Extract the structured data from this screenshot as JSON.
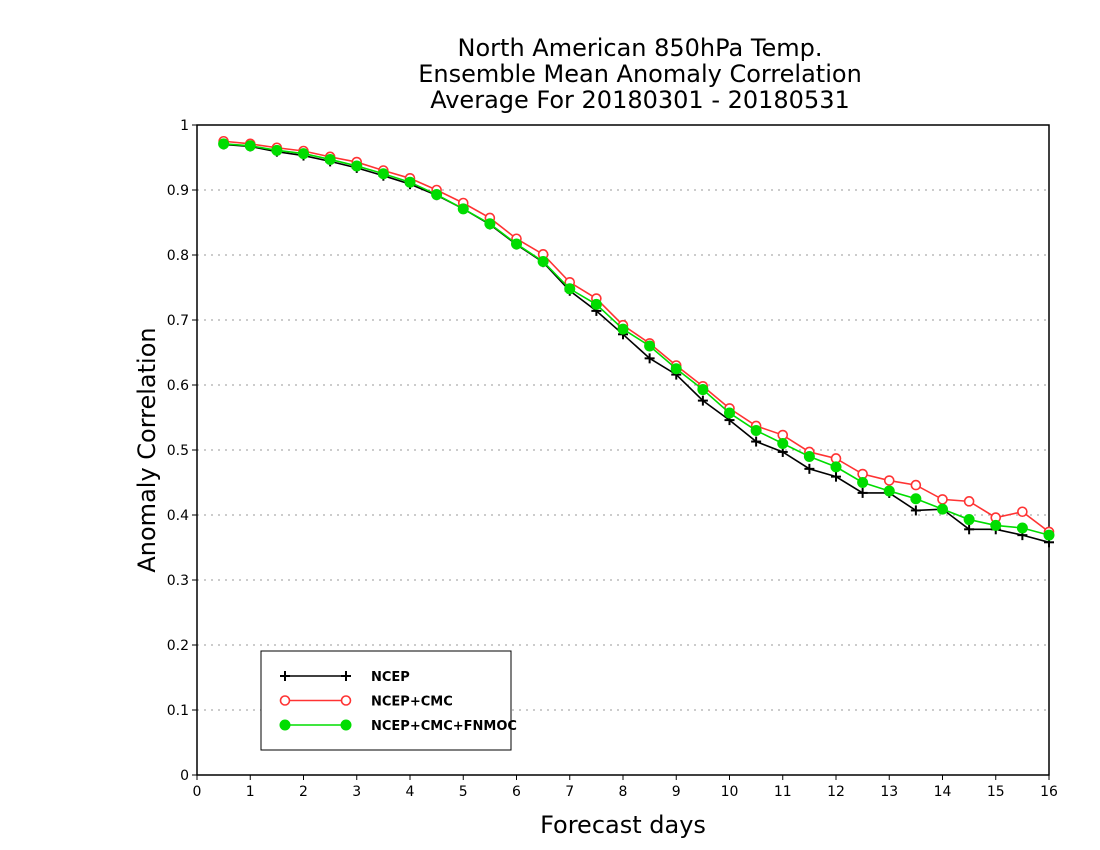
{
  "chart_data": {
    "type": "line",
    "title": [
      "North American 850hPa Temp.",
      "Ensemble Mean Anomaly Correlation",
      "Average For 20180301 - 20180531"
    ],
    "xlabel": "Forecast days",
    "ylabel": "Anomaly Correlation",
    "xlim": [
      0,
      16
    ],
    "ylim": [
      0,
      1
    ],
    "xticks": [
      "0",
      "1",
      "2",
      "3",
      "4",
      "5",
      "6",
      "7",
      "8",
      "9",
      "10",
      "11",
      "12",
      "13",
      "14",
      "15",
      "16"
    ],
    "yticks": [
      "0",
      "0.1",
      "0.2",
      "0.3",
      "0.4",
      "0.5",
      "0.6",
      "0.7",
      "0.8",
      "0.9",
      "1"
    ],
    "grid": "dotted horizontal",
    "legend_position": "bottom-left",
    "x": [
      0.5,
      1,
      1.5,
      2,
      2.5,
      3,
      3.5,
      4,
      4.5,
      5,
      5.5,
      6,
      6.5,
      7,
      7.5,
      8,
      8.5,
      9,
      9.5,
      10,
      10.5,
      11,
      11.5,
      12,
      12.5,
      13,
      13.5,
      14,
      14.5,
      15,
      15.5,
      16
    ],
    "series": [
      {
        "name": "NCEP",
        "color": "#000000",
        "marker": "plus",
        "values": [
          0.97,
          0.967,
          0.959,
          0.953,
          0.944,
          0.934,
          0.922,
          0.909,
          0.892,
          0.871,
          0.847,
          0.816,
          0.789,
          0.745,
          0.714,
          0.678,
          0.641,
          0.616,
          0.576,
          0.546,
          0.513,
          0.497,
          0.471,
          0.459,
          0.434,
          0.434,
          0.407,
          0.409,
          0.378,
          0.378,
          0.369,
          0.358
        ]
      },
      {
        "name": "NCEP+CMC",
        "color": "#ff3333",
        "marker": "open-circle",
        "values": [
          0.975,
          0.971,
          0.965,
          0.96,
          0.951,
          0.943,
          0.93,
          0.918,
          0.9,
          0.88,
          0.857,
          0.825,
          0.801,
          0.758,
          0.733,
          0.692,
          0.664,
          0.63,
          0.598,
          0.564,
          0.537,
          0.523,
          0.497,
          0.487,
          0.463,
          0.453,
          0.446,
          0.424,
          0.421,
          0.396,
          0.405,
          0.374
        ]
      },
      {
        "name": "NCEP+CMC+FNMOC",
        "color": "#00dd00",
        "marker": "filled-circle",
        "values": [
          0.971,
          0.968,
          0.961,
          0.956,
          0.947,
          0.937,
          0.925,
          0.912,
          0.893,
          0.871,
          0.848,
          0.817,
          0.79,
          0.748,
          0.724,
          0.686,
          0.66,
          0.625,
          0.593,
          0.557,
          0.53,
          0.51,
          0.49,
          0.474,
          0.45,
          0.437,
          0.425,
          0.409,
          0.393,
          0.384,
          0.38,
          0.369
        ]
      }
    ]
  }
}
